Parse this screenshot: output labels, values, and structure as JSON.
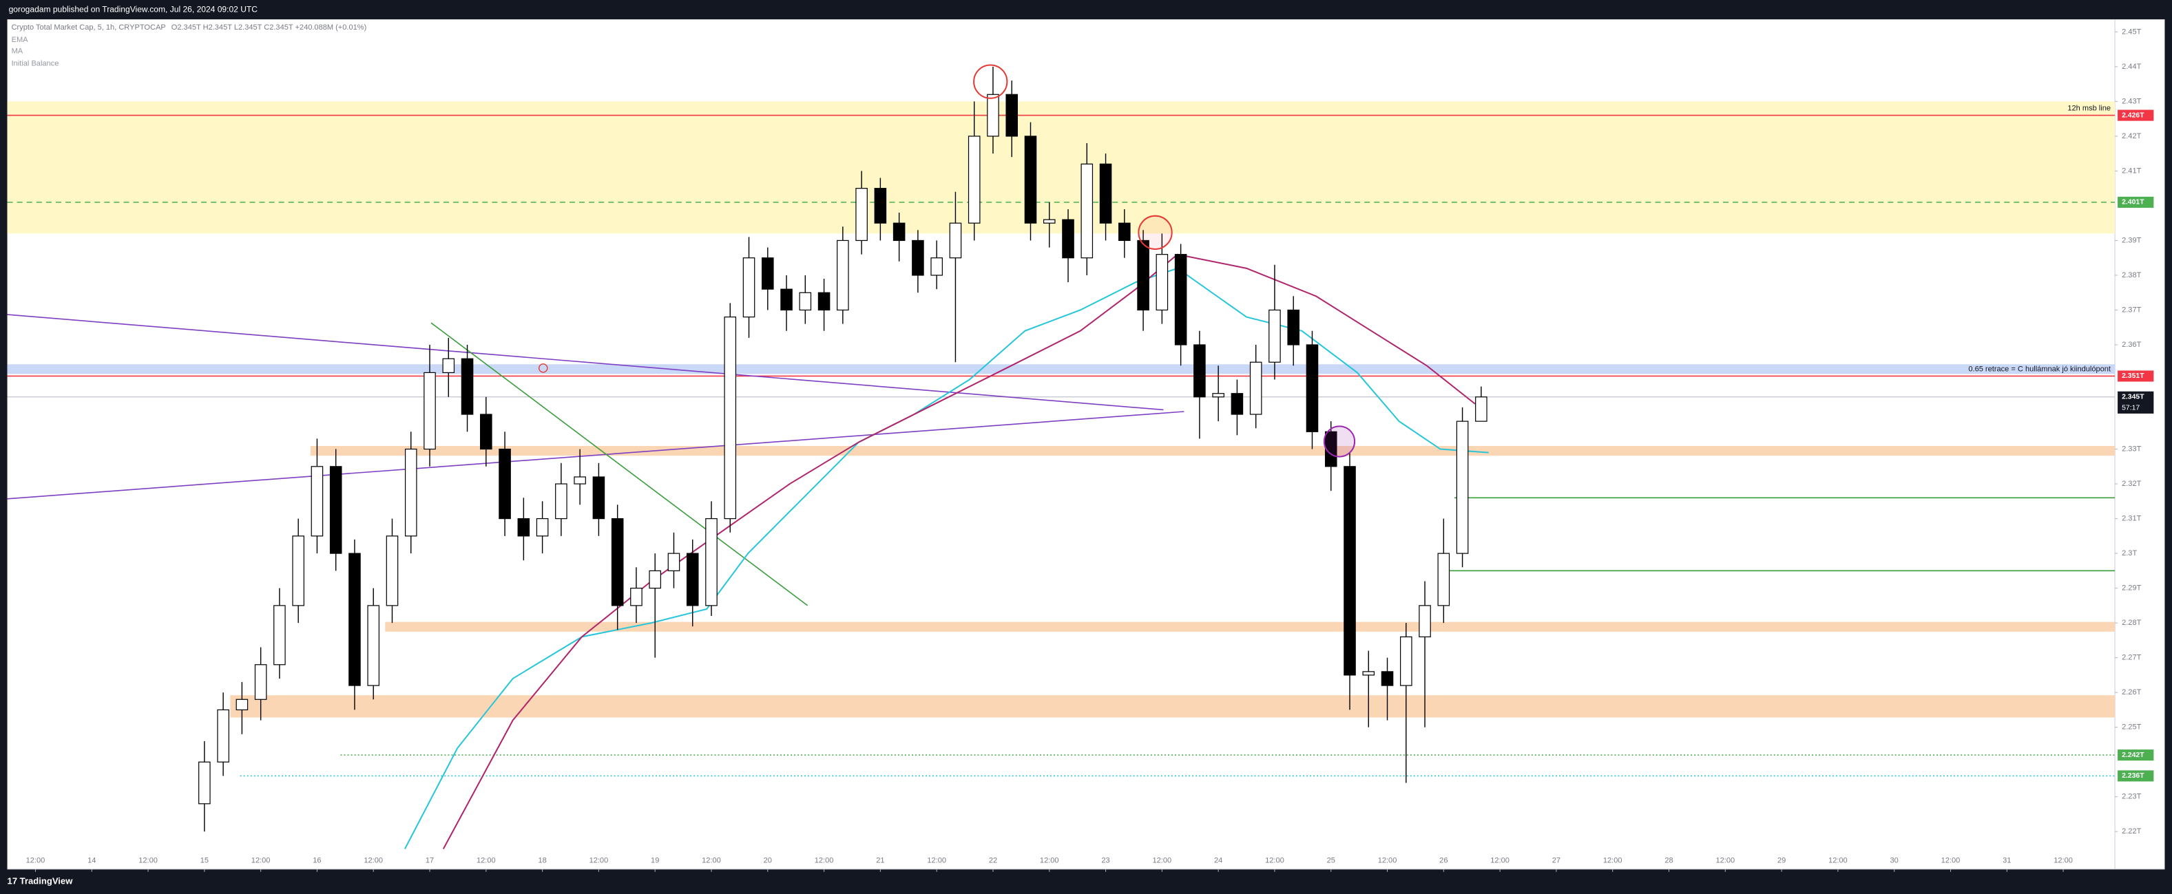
{
  "header": {
    "publisher": "gorogadam published on TradingView.com, Jul 26, 2024 09:02 UTC"
  },
  "footer": {
    "brand": "TradingView"
  },
  "chart_data": {
    "type": "candlestick",
    "title": "Crypto Total Market Cap, 5, 1h, CRYPTOCAP",
    "ohlc_info": "O2.345T H2.345T L2.345T C2.345T +240.088M (+0.01%)",
    "indicators": [
      "EMA",
      "MA",
      "Initial Balance"
    ],
    "up_color": "#ffffff",
    "down_color": "#000000",
    "wick_color": "#000000",
    "x": [
      24,
      28,
      32,
      36,
      40,
      44,
      48,
      52,
      56,
      60,
      64,
      68,
      72,
      76,
      80,
      84,
      88,
      92,
      96,
      100,
      104,
      108,
      112,
      116,
      120,
      124,
      128,
      132,
      136,
      140,
      144,
      148,
      152,
      156,
      160,
      164,
      168,
      172,
      176,
      180,
      184,
      188,
      192,
      196,
      200,
      204,
      208,
      212,
      216,
      220,
      224,
      228,
      232,
      236,
      240,
      244,
      248,
      252,
      256,
      260,
      264,
      268,
      272,
      276,
      280,
      284,
      288,
      292,
      296
    ],
    "open": [
      2.228,
      2.24,
      2.255,
      2.258,
      2.268,
      2.285,
      2.305,
      2.325,
      2.3,
      2.262,
      2.285,
      2.305,
      2.33,
      2.352,
      2.356,
      2.34,
      2.33,
      2.31,
      2.305,
      2.31,
      2.32,
      2.322,
      2.31,
      2.285,
      2.29,
      2.295,
      2.3,
      2.285,
      2.31,
      2.368,
      2.385,
      2.376,
      2.37,
      2.375,
      2.37,
      2.39,
      2.405,
      2.395,
      2.39,
      2.38,
      2.385,
      2.395,
      2.42,
      2.432,
      2.42,
      2.395,
      2.396,
      2.385,
      2.412,
      2.395,
      2.39,
      2.37,
      2.386,
      2.36,
      2.345,
      2.346,
      2.34,
      2.355,
      2.37,
      2.36,
      2.335,
      2.325,
      2.265,
      2.266,
      2.262,
      2.276,
      2.285,
      2.3,
      2.338
    ],
    "high": [
      2.246,
      2.26,
      2.263,
      2.273,
      2.29,
      2.31,
      2.333,
      2.33,
      2.304,
      2.29,
      2.31,
      2.335,
      2.36,
      2.362,
      2.36,
      2.345,
      2.335,
      2.316,
      2.315,
      2.326,
      2.33,
      2.326,
      2.314,
      2.296,
      2.3,
      2.306,
      2.304,
      2.315,
      2.372,
      2.391,
      2.388,
      2.38,
      2.38,
      2.379,
      2.394,
      2.41,
      2.408,
      2.398,
      2.393,
      2.39,
      2.404,
      2.43,
      2.44,
      2.436,
      2.424,
      2.401,
      2.399,
      2.418,
      2.415,
      2.399,
      2.393,
      2.392,
      2.389,
      2.364,
      2.354,
      2.35,
      2.36,
      2.383,
      2.374,
      2.364,
      2.338,
      2.329,
      2.272,
      2.27,
      2.28,
      2.292,
      2.31,
      2.342,
      2.348
    ],
    "low": [
      2.22,
      2.236,
      2.248,
      2.252,
      2.264,
      2.28,
      2.3,
      2.295,
      2.255,
      2.258,
      2.28,
      2.3,
      2.325,
      2.345,
      2.335,
      2.325,
      2.305,
      2.298,
      2.3,
      2.305,
      2.314,
      2.305,
      2.278,
      2.28,
      2.27,
      2.29,
      2.279,
      2.282,
      2.306,
      2.362,
      2.37,
      2.364,
      2.366,
      2.364,
      2.366,
      2.386,
      2.39,
      2.384,
      2.375,
      2.376,
      2.355,
      2.39,
      2.415,
      2.414,
      2.39,
      2.388,
      2.378,
      2.38,
      2.39,
      2.385,
      2.364,
      2.366,
      2.354,
      2.333,
      2.338,
      2.334,
      2.336,
      2.35,
      2.354,
      2.33,
      2.318,
      2.255,
      2.25,
      2.252,
      2.234,
      2.25,
      2.28,
      2.296,
      2.34
    ],
    "close": [
      2.24,
      2.255,
      2.258,
      2.268,
      2.285,
      2.305,
      2.325,
      2.3,
      2.262,
      2.285,
      2.305,
      2.33,
      2.352,
      2.356,
      2.34,
      2.33,
      2.31,
      2.305,
      2.31,
      2.32,
      2.322,
      2.31,
      2.285,
      2.29,
      2.295,
      2.3,
      2.285,
      2.31,
      2.368,
      2.385,
      2.376,
      2.37,
      2.375,
      2.37,
      2.39,
      2.405,
      2.395,
      2.39,
      2.38,
      2.385,
      2.395,
      2.42,
      2.432,
      2.42,
      2.395,
      2.396,
      2.385,
      2.412,
      2.395,
      2.39,
      2.37,
      2.386,
      2.36,
      2.345,
      2.346,
      2.34,
      2.355,
      2.37,
      2.36,
      2.335,
      2.325,
      2.265,
      2.266,
      2.262,
      2.276,
      2.285,
      2.3,
      2.338,
      2.345
    ],
    "overlays": [
      {
        "name": "EMA",
        "color": "#26c6da",
        "x": [
          66.7,
          77.9,
          89.7,
          104.4,
          119.2,
          131.0,
          139.8,
          151.6,
          163.4,
          175.2,
          187.0,
          198.8,
          210.6,
          222.4,
          231.3,
          246.0,
          257.8,
          269.6,
          278.5,
          287.3,
          297.6
        ],
        "values": [
          2.215,
          2.244,
          2.264,
          2.276,
          2.28,
          2.284,
          2.3,
          2.316,
          2.332,
          2.34,
          2.35,
          2.364,
          2.37,
          2.378,
          2.382,
          2.368,
          2.364,
          2.352,
          2.338,
          2.33,
          2.329
        ]
      },
      {
        "name": "MA",
        "color": "#b0246c",
        "x": [
          74.9,
          89.7,
          104.4,
          119.2,
          133.9,
          148.7,
          163.4,
          181.1,
          195.9,
          210.6,
          222.4,
          231.3,
          246.0,
          260.8,
          272.6,
          284.4,
          294.7
        ],
        "values": [
          2.215,
          2.252,
          2.276,
          2.292,
          2.306,
          2.32,
          2.332,
          2.344,
          2.354,
          2.364,
          2.376,
          2.386,
          2.382,
          2.374,
          2.364,
          2.354,
          2.343
        ]
      }
    ],
    "zones": [
      {
        "from": 2.43,
        "to": 2.392,
        "x_start": -18,
        "color": "#fff8c6"
      },
      {
        "from": 2.3544,
        "to": 2.3516,
        "x_start": -18,
        "color": "#c9d8f6"
      },
      {
        "from": 2.3309,
        "to": 2.3281,
        "x_start": 46.6,
        "color": "#fbd6b4"
      },
      {
        "from": 2.2803,
        "to": 2.2775,
        "x_start": 62.5,
        "color": "#fbd6b4"
      },
      {
        "from": 2.2592,
        "to": 2.2528,
        "x_start": 29.5,
        "color": "#fbd6b4"
      }
    ],
    "trendlines": [
      {
        "x": [
          -18,
          228.3
        ],
        "values": [
          2.3687,
          2.3413
        ],
        "color": "#7e3fc4"
      },
      {
        "x": [
          -18,
          232.7
        ],
        "values": [
          2.3157,
          2.3408
        ],
        "color": "#7e3fc4"
      },
      {
        "x": [
          72.3,
          152.5
        ],
        "values": [
          2.3663,
          2.285
        ],
        "color": "#3a9e3a"
      }
    ],
    "levels": [
      {
        "value": 2.426,
        "label": "2.426T",
        "note": "12h msb line",
        "color": "#f23645",
        "style": "solid",
        "x_start": -18
      },
      {
        "value": 2.401,
        "label": "2.401T",
        "color": "#4caf50",
        "style": "dashed",
        "x_start": -18
      },
      {
        "value": 2.351,
        "label": "2.351T",
        "note": "0.65 retrace = C hullámnak jó kiindulópont",
        "color": "#f23645",
        "style": "solid",
        "x_start": -18
      },
      {
        "value": 2.242,
        "label": "2.242T",
        "color": "#4caf50",
        "style": "dotted",
        "x_start": 53
      },
      {
        "value": 2.236,
        "label": "2.236T",
        "color": "#26c6da",
        "style": "dotted",
        "x_start": 31.6
      },
      {
        "value": 2.316,
        "color": "#3a9e3a",
        "style": "solid",
        "x_start": 290.3
      },
      {
        "value": 2.295,
        "color": "#3a9e3a",
        "style": "solid",
        "x_start": 288.8
      }
    ],
    "last_price": {
      "value": 2.345,
      "label": "2.345T",
      "countdown": "57:17"
    },
    "xlim": [
      -18,
      431
    ],
    "ylim": [
      2.2092,
      2.4536
    ],
    "xticks": [
      {
        "value": -12,
        "label": "12:00"
      },
      {
        "value": 0,
        "label": "14"
      },
      {
        "value": 12,
        "label": "12:00"
      },
      {
        "value": 24,
        "label": "15"
      },
      {
        "value": 36,
        "label": "12:00"
      },
      {
        "value": 48,
        "label": "16"
      },
      {
        "value": 60,
        "label": "12:00"
      },
      {
        "value": 72,
        "label": "17"
      },
      {
        "value": 84,
        "label": "12:00"
      },
      {
        "value": 96,
        "label": "18"
      },
      {
        "value": 108,
        "label": "12:00"
      },
      {
        "value": 120,
        "label": "19"
      },
      {
        "value": 132,
        "label": "12:00"
      },
      {
        "value": 144,
        "label": "20"
      },
      {
        "value": 156,
        "label": "12:00"
      },
      {
        "value": 168,
        "label": "21"
      },
      {
        "value": 180,
        "label": "12:00"
      },
      {
        "value": 192,
        "label": "22"
      },
      {
        "value": 204,
        "label": "12:00"
      },
      {
        "value": 216,
        "label": "23"
      },
      {
        "value": 228,
        "label": "12:00"
      },
      {
        "value": 240,
        "label": "24"
      },
      {
        "value": 252,
        "label": "12:00"
      },
      {
        "value": 264,
        "label": "25"
      },
      {
        "value": 276,
        "label": "12:00"
      },
      {
        "value": 288,
        "label": "26"
      },
      {
        "value": 300,
        "label": "12:00"
      },
      {
        "value": 312,
        "label": "27"
      },
      {
        "value": 324,
        "label": "12:00"
      },
      {
        "value": 336,
        "label": "28"
      },
      {
        "value": 348,
        "label": "12:00"
      },
      {
        "value": 360,
        "label": "29"
      },
      {
        "value": 372,
        "label": "12:00"
      },
      {
        "value": 384,
        "label": "30"
      },
      {
        "value": 396,
        "label": "12:00"
      },
      {
        "value": 408,
        "label": "31"
      },
      {
        "value": 420,
        "label": "12:00"
      }
    ],
    "yticks": [
      {
        "value": 2.45,
        "label": "2.45T"
      },
      {
        "value": 2.44,
        "label": "2.44T"
      },
      {
        "value": 2.43,
        "label": "2.43T"
      },
      {
        "value": 2.42,
        "label": "2.42T"
      },
      {
        "value": 2.41,
        "label": "2.41T"
      },
      {
        "value": 2.39,
        "label": "2.39T"
      },
      {
        "value": 2.38,
        "label": "2.38T"
      },
      {
        "value": 2.37,
        "label": "2.37T"
      },
      {
        "value": 2.36,
        "label": "2.36T"
      },
      {
        "value": 2.33,
        "label": "2.33T"
      },
      {
        "value": 2.32,
        "label": "2.32T"
      },
      {
        "value": 2.31,
        "label": "2.31T"
      },
      {
        "value": 2.3,
        "label": "2.3T"
      },
      {
        "value": 2.29,
        "label": "2.29T"
      },
      {
        "value": 2.28,
        "label": "2.28T"
      },
      {
        "value": 2.27,
        "label": "2.27T"
      },
      {
        "value": 2.26,
        "label": "2.26T"
      },
      {
        "value": 2.25,
        "label": "2.25T"
      },
      {
        "value": 2.23,
        "label": "2.23T"
      },
      {
        "value": 2.22,
        "label": "2.22T"
      }
    ]
  }
}
